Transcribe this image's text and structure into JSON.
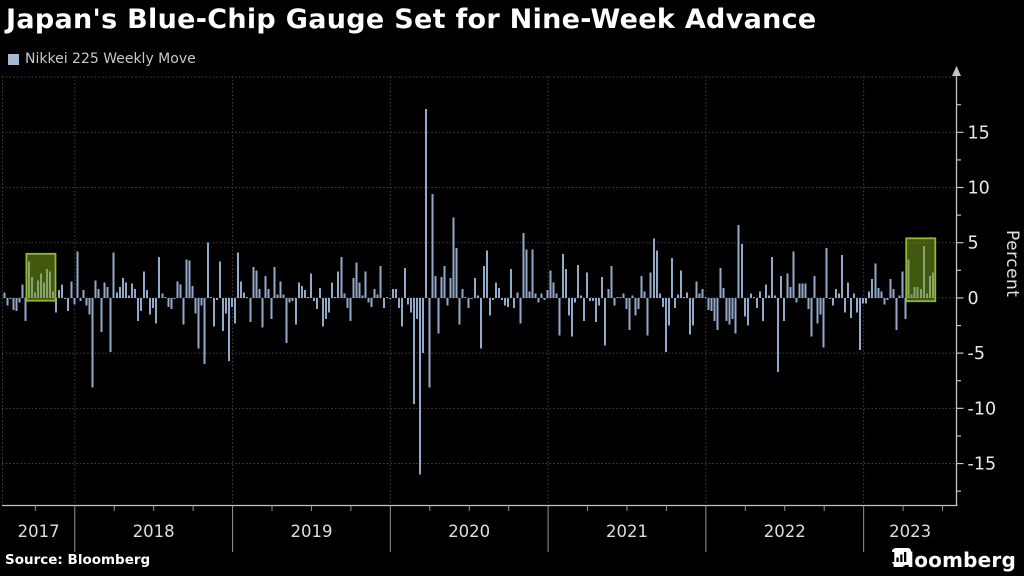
{
  "header": {
    "title": "Japan's Blue-Chip Gauge Set for Nine-Week Advance"
  },
  "legend": {
    "label": "Nikkei 225 Weekly Move",
    "swatch_color": "#a4b9d5"
  },
  "footer": {
    "source_label": "Source: Bloomberg",
    "brand": "Bloomberg"
  },
  "colors": {
    "background": "#000000",
    "bar": "#93a9c9",
    "grid": "#454545",
    "axis": "#c4c4c4",
    "tick_label": "#e8e8e8",
    "year_label": "#dedede",
    "highlight_fill": "rgba(120,160,30,0.55)",
    "highlight_stroke": "#90ba30"
  },
  "chart_data": {
    "type": "bar",
    "title": "Japan's Blue-Chip Gauge Set for Nine-Week Advance",
    "xlabel": "",
    "ylabel": "Percent",
    "ylim": [
      -18.8,
      20.1
    ],
    "y_major_ticks": [
      15,
      10,
      5,
      0,
      -5,
      -10,
      -15
    ],
    "y_minor_ticks": [
      17.5,
      12.5,
      7.5,
      2.5,
      -2.5,
      -7.5,
      -12.5,
      -17.5
    ],
    "grid": "dotted",
    "legend_position": "top-left",
    "series_name": "Nikkei 225 Weekly Move",
    "years": [
      {
        "label": "2017",
        "weeks": 24
      },
      {
        "label": "2018",
        "weeks": 52
      },
      {
        "label": "2019",
        "weeks": 52
      },
      {
        "label": "2020",
        "weeks": 52
      },
      {
        "label": "2021",
        "weeks": 52
      },
      {
        "label": "2022",
        "weeks": 52
      },
      {
        "label": "2023",
        "weeks": 23
      }
    ],
    "values_by_year": {
      "2017": [
        0.5,
        -0.7,
        -0.1,
        -1.1,
        -1.2,
        -0.4,
        1.2,
        -2.1,
        3.3,
        1.9,
        0.5,
        1.6,
        2.2,
        1.4,
        2.6,
        2.4,
        0.6,
        -1.3,
        0.7,
        1.2,
        -0.1,
        -1.2,
        1.5,
        -0.6
      ],
      "2018": [
        4.2,
        -0.3,
        0.7,
        -0.7,
        -1.5,
        -8.1,
        1.6,
        0.8,
        -3.1,
        1.4,
        1.0,
        -4.9,
        4.1,
        0.5,
        1.0,
        1.8,
        1.4,
        0.2,
        1.3,
        0.8,
        -2.1,
        -1.2,
        2.4,
        0.7,
        -1.5,
        -0.9,
        -2.3,
        3.7,
        0.4,
        0.1,
        -0.8,
        -1.0,
        -0.1,
        1.5,
        1.2,
        -2.4,
        3.5,
        3.4,
        1.1,
        -1.4,
        -4.6,
        -0.7,
        -6.0,
        5.0,
        0.0,
        -2.6,
        -0.2,
        3.3,
        -3.0,
        -1.4,
        -5.7,
        -0.8
      ],
      "2019": [
        -2.3,
        4.1,
        1.5,
        0.5,
        0.1,
        -2.2,
        2.8,
        2.5,
        0.8,
        -2.7,
        2.0,
        0.8,
        -1.9,
        2.8,
        0.3,
        1.5,
        0.3,
        -4.1,
        -0.4,
        -0.3,
        -2.4,
        1.4,
        1.1,
        0.7,
        0.1,
        2.2,
        -0.3,
        -1.0,
        0.9,
        -2.6,
        -1.9,
        -1.3,
        1.4,
        0.0,
        2.4,
        3.7,
        0.4,
        -0.9,
        -2.1,
        1.8,
        3.2,
        1.4,
        0.2,
        2.4,
        -0.4,
        -0.8,
        0.8,
        0.3,
        2.9,
        -0.9,
        0.1,
        -0.1
      ],
      "2020": [
        0.8,
        0.8,
        -0.9,
        -2.6,
        2.7,
        -0.6,
        -1.3,
        -9.6,
        -1.9,
        -16.0,
        -5.0,
        17.1,
        -8.1,
        9.4,
        2.0,
        -3.2,
        1.9,
        2.9,
        -0.7,
        1.8,
        7.3,
        4.5,
        -2.4,
        0.8,
        0.1,
        -0.9,
        -0.1,
        1.8,
        0.2,
        -4.6,
        2.9,
        4.3,
        -1.6,
        -0.2,
        1.4,
        0.9,
        -0.2,
        -0.7,
        -0.8,
        2.6,
        -0.9,
        0.5,
        -2.3,
        5.9,
        4.4,
        0.6,
        4.4,
        0.4,
        -0.4,
        0.4,
        -0.2,
        0.7
      ],
      "2021": [
        2.5,
        1.4,
        0.4,
        -3.4,
        4.0,
        2.6,
        -1.6,
        -3.5,
        -0.4,
        3.0,
        0.2,
        -2.1,
        2.3,
        -0.3,
        -0.3,
        -2.2,
        -0.7,
        1.9,
        -4.3,
        0.8,
        2.9,
        -0.7,
        0.0,
        0.1,
        0.4,
        -1.0,
        -2.9,
        0.2,
        -1.6,
        -1.0,
        2.0,
        0.6,
        -3.4,
        2.3,
        5.4,
        4.3,
        0.4,
        -0.8,
        -4.9,
        -2.5,
        3.6,
        -0.9,
        0.3,
        2.5,
        0.0,
        0.5,
        -3.3,
        -2.5,
        1.5,
        0.4,
        0.8,
        0.0
      ],
      "2022": [
        -1.1,
        -1.2,
        -2.1,
        -2.9,
        2.7,
        0.9,
        -2.1,
        -2.4,
        -1.9,
        -3.2,
        6.6,
        4.9,
        -1.7,
        -2.5,
        0.4,
        0.0,
        -0.9,
        0.6,
        -2.1,
        1.2,
        0.2,
        3.7,
        0.2,
        -6.7,
        2.0,
        -2.1,
        2.2,
        1.0,
        4.2,
        -0.4,
        1.3,
        1.3,
        1.3,
        -1.0,
        -3.5,
        2.0,
        -2.3,
        -1.5,
        -4.5,
        4.5,
        -0.1,
        -0.7,
        0.8,
        0.4,
        3.9,
        -1.3,
        1.4,
        -1.8,
        0.4,
        -1.3,
        -4.7,
        -0.5
      ],
      "2023": [
        -0.5,
        0.6,
        1.7,
        3.1,
        0.9,
        0.6,
        -0.6,
        -0.2,
        1.7,
        0.8,
        -2.9,
        0.2,
        2.4,
        -1.9,
        3.5,
        0.3,
        1.0,
        1.0,
        0.8,
        4.7,
        0.4,
        2.0,
        2.3
      ]
    },
    "highlights": [
      {
        "name": "nine-week-advance-2017",
        "start_index": 8,
        "end_index": 16,
        "top": 4.0,
        "bottom": -0.25
      },
      {
        "name": "nine-week-advance-2023",
        "start_index": 298,
        "end_index": 306,
        "top": 5.4,
        "bottom": -0.3
      }
    ]
  }
}
